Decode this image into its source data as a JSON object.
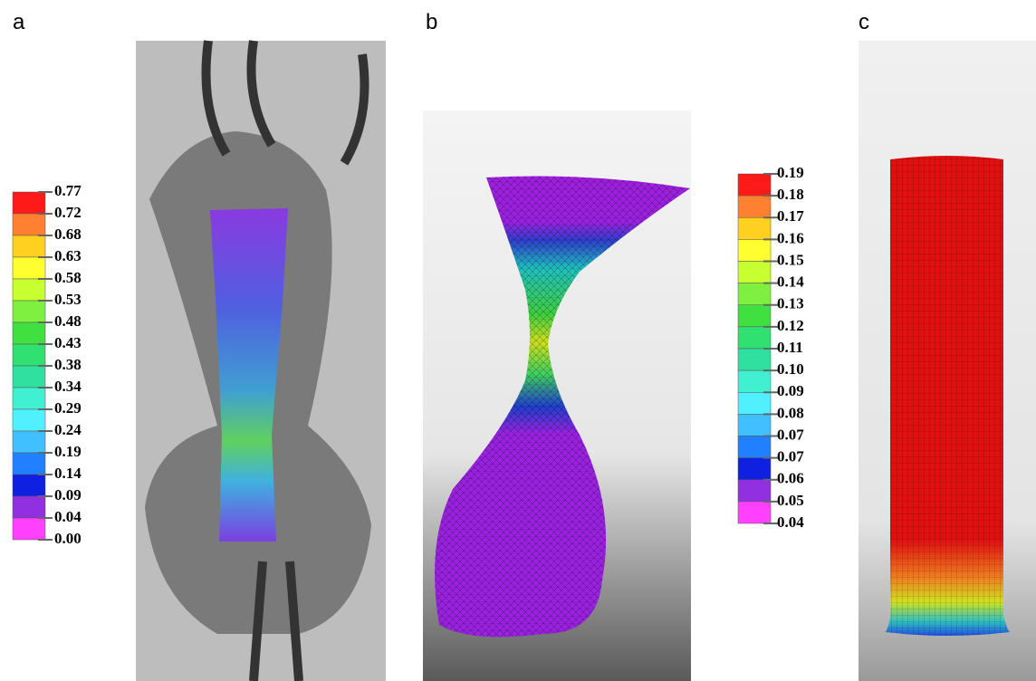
{
  "panels": [
    {
      "label": "a",
      "colorbar": [
        "0.77",
        "0.72",
        "0.68",
        "0.63",
        "0.58",
        "0.53",
        "0.48",
        "0.43",
        "0.38",
        "0.34",
        "0.29",
        "0.24",
        "0.19",
        "0.14",
        "0.09",
        "0.04",
        "0.00"
      ]
    },
    {
      "label": "b",
      "colorbar": [
        "0.19",
        "0.18",
        "0.17",
        "0.16",
        "0.15",
        "0.14",
        "0.13",
        "0.12",
        "0.11",
        "0.10",
        "0.09",
        "0.08",
        "0.07",
        "0.07",
        "0.06",
        "0.05",
        "0.04"
      ]
    },
    {
      "label": "c"
    }
  ]
}
